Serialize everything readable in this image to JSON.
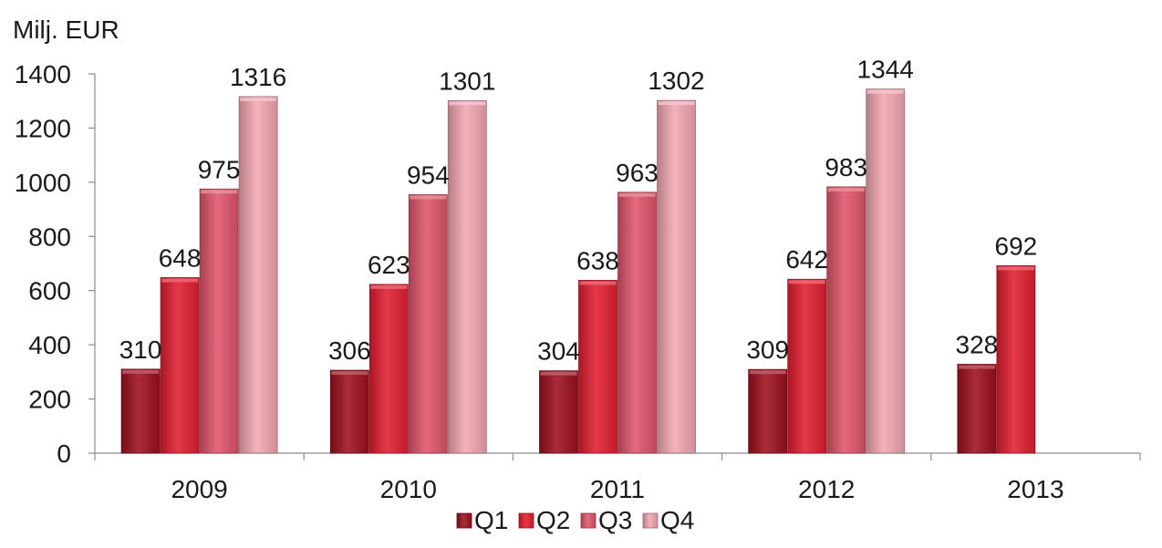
{
  "chart_data": {
    "type": "bar",
    "ylabel": "Milj. EUR",
    "categories": [
      "2009",
      "2010",
      "2011",
      "2012",
      "2013"
    ],
    "series": [
      {
        "name": "Q1",
        "color": "#9e0f1e",
        "values": [
          310,
          306,
          304,
          309,
          328
        ]
      },
      {
        "name": "Q2",
        "color": "#e31e2f",
        "values": [
          648,
          623,
          638,
          642,
          692
        ]
      },
      {
        "name": "Q3",
        "color": "#e0566a",
        "values": [
          975,
          954,
          963,
          983,
          null
        ]
      },
      {
        "name": "Q4",
        "color": "#f2a7b3",
        "values": [
          1316,
          1301,
          1302,
          1344,
          null
        ]
      }
    ],
    "ylim": [
      0,
      1400
    ],
    "yticks": [
      0,
      200,
      400,
      600,
      800,
      1000,
      1200,
      1400
    ],
    "grid": false,
    "legend_position": "bottom"
  }
}
